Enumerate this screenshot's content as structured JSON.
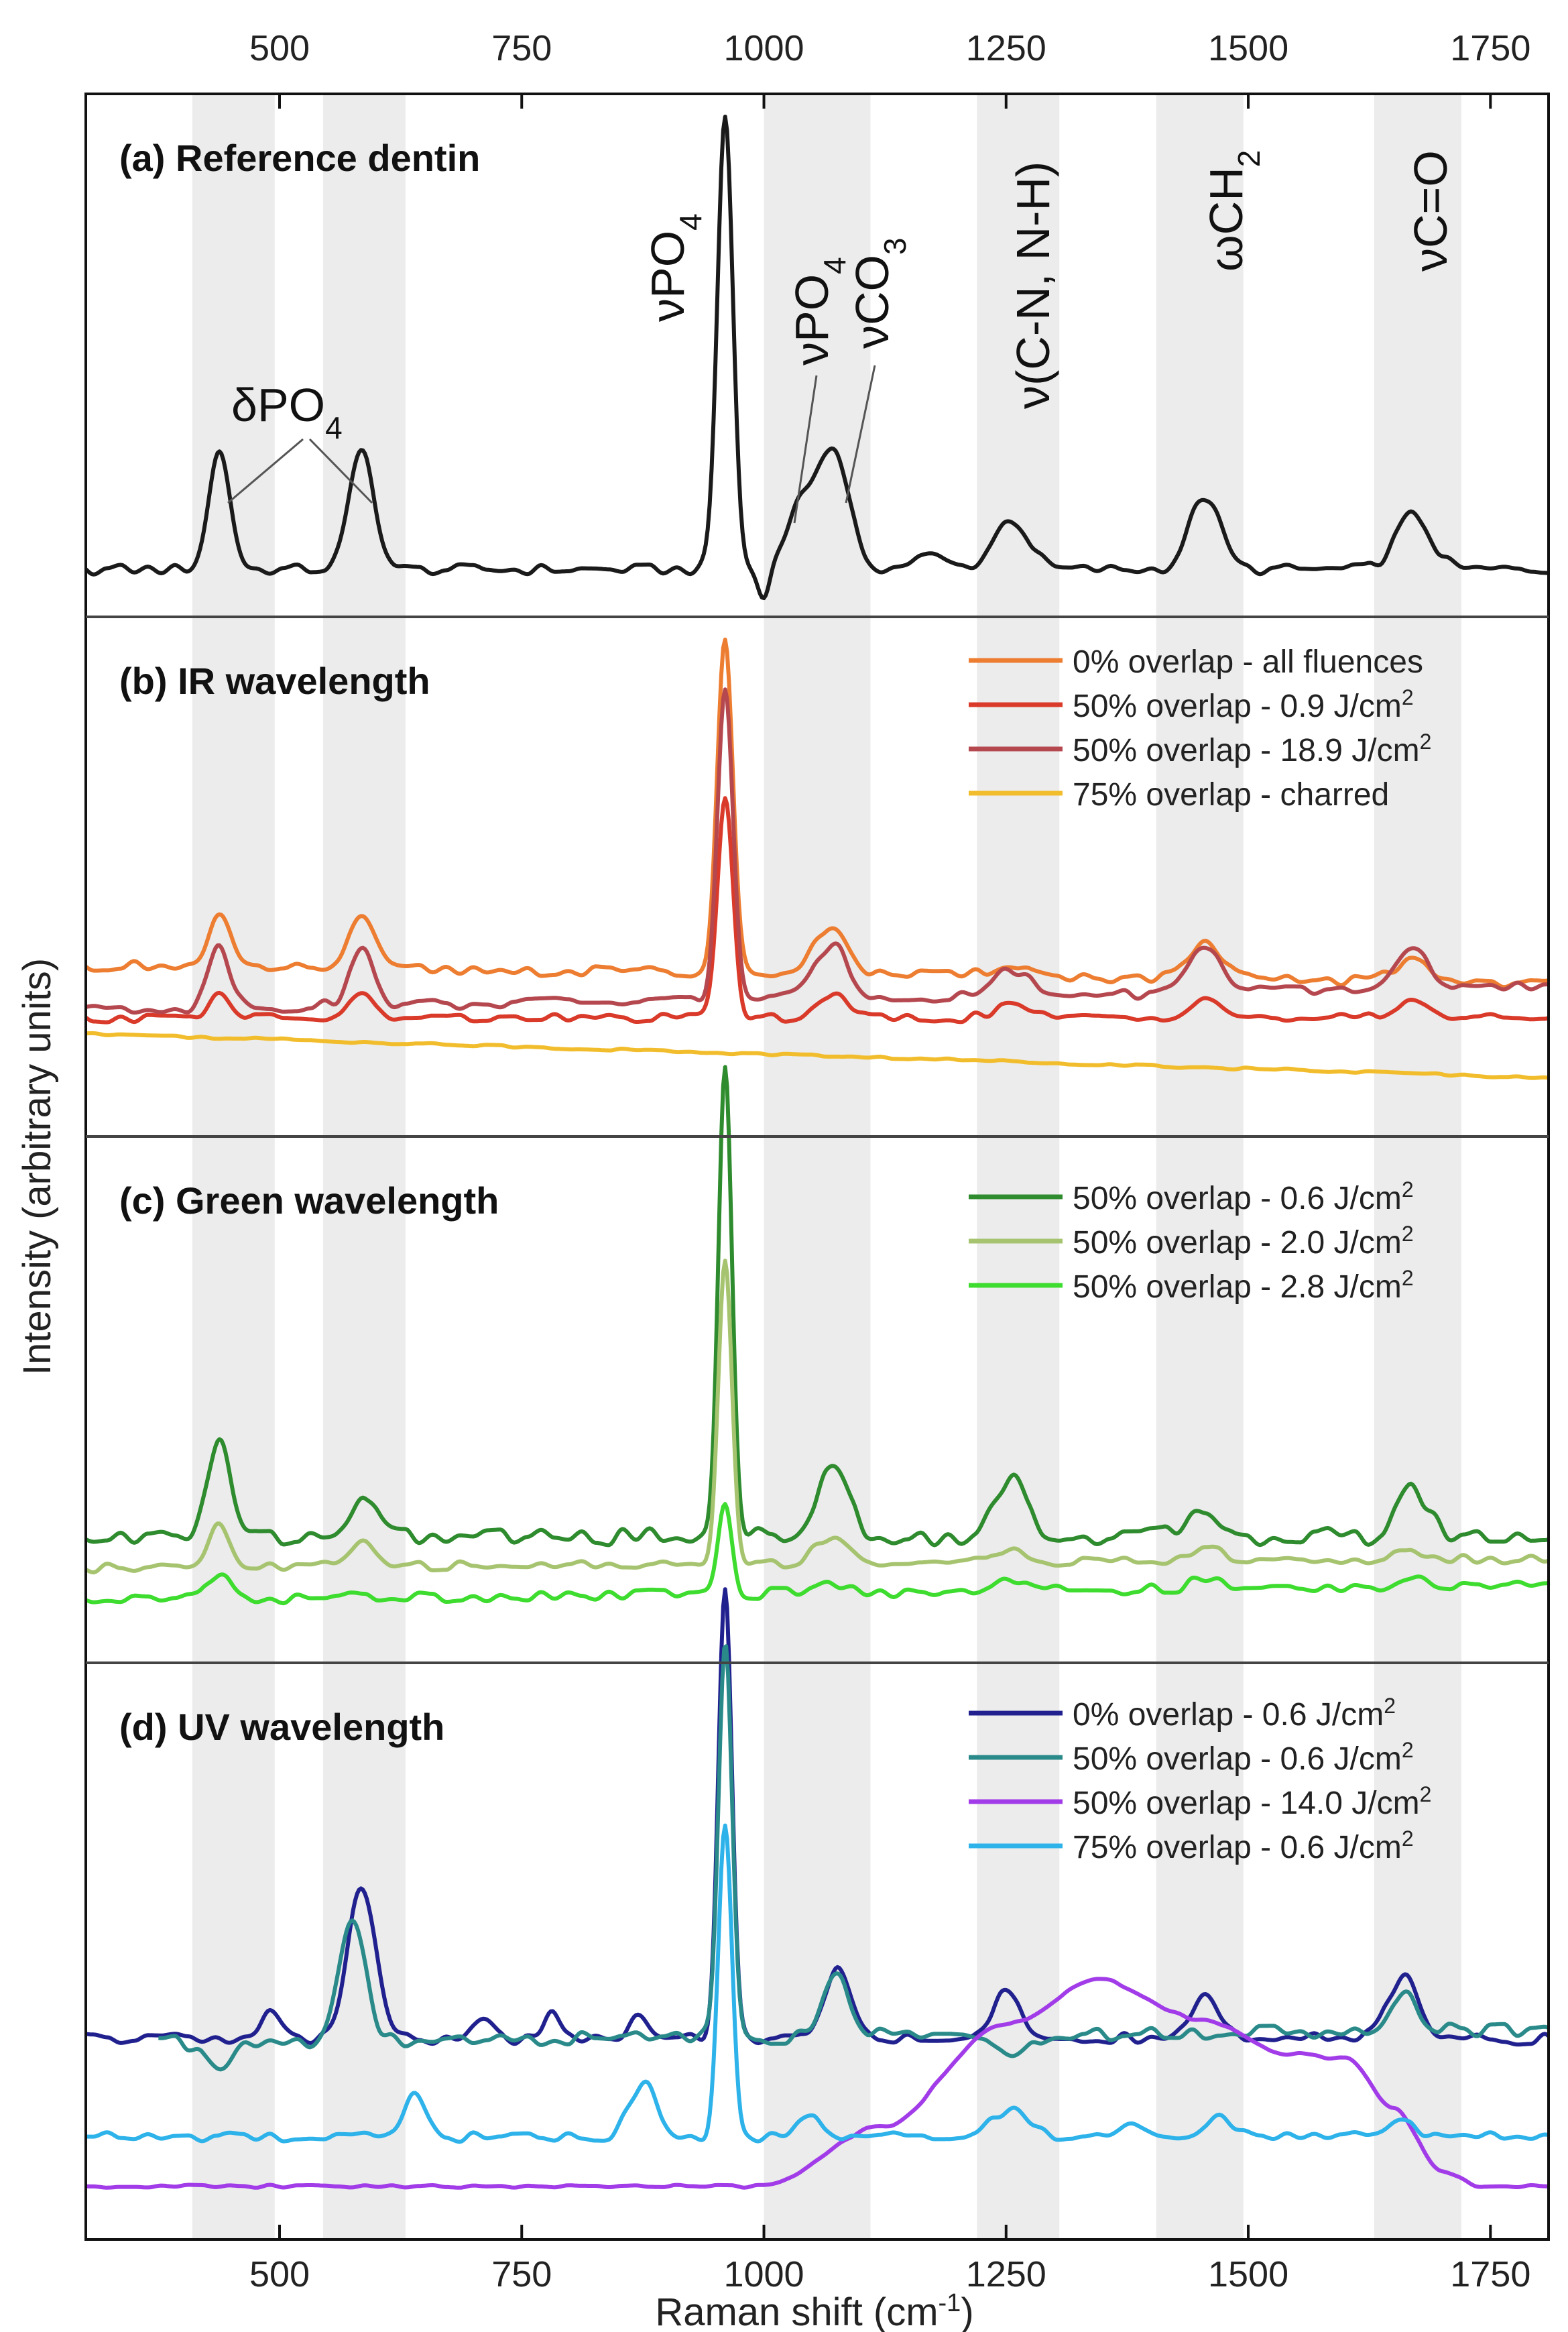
{
  "chart_data": {
    "type": "line",
    "xlabel": "Raman shift (cm",
    "xlabel_sup": "-1",
    "xlabel_close": ")",
    "ylabel": "Intensity (arbitrary units)",
    "xlim": [
      300,
      1810
    ],
    "xticks": [
      500,
      750,
      1000,
      1250,
      1500,
      1750
    ],
    "xtick_labels": [
      "500",
      "750",
      "1000",
      "1250",
      "1500",
      "1750"
    ],
    "shaded_bands": [
      [
        410,
        495
      ],
      [
        545,
        630
      ],
      [
        1000,
        1110
      ],
      [
        1220,
        1305
      ],
      [
        1405,
        1495
      ],
      [
        1630,
        1720
      ]
    ],
    "panels": [
      {
        "title": "(a) Reference dentin",
        "annotations": [
          {
            "label": "δPO",
            "sub": "4",
            "x": 525
          },
          {
            "label": "νPO",
            "sub": "4",
            "x": 960
          },
          {
            "label": "νPO",
            "sub": "4",
            "x": 1035
          },
          {
            "label": "νCO",
            "sub": "3",
            "x": 1080
          },
          {
            "label": "ν(C-N, N-H)",
            "sub": "",
            "x": 1255
          },
          {
            "label": "ωCH",
            "sub": "2",
            "x": 1455
          },
          {
            "label": "νC=O",
            "sub": "",
            "x": 1670
          }
        ],
        "series": [
          {
            "name": "Reference dentin",
            "color": "#1a1a1a",
            "baseline": 0.06,
            "peaks": [
              [
                438,
                0.26,
                11
              ],
              [
                585,
                0.26,
                13
              ],
              [
                960,
                1.0,
                8
              ],
              [
                1035,
                0.12,
                15
              ],
              [
                1070,
                0.26,
                17
              ],
              [
                1170,
                0.03,
                18
              ],
              [
                1255,
                0.11,
                18
              ],
              [
                1455,
                0.16,
                16
              ],
              [
                1670,
                0.12,
                18
              ]
            ],
            "noise": 0.012,
            "dip": [
              1000,
              -0.07,
              6
            ]
          }
        ]
      },
      {
        "title": "(b) IR wavelength",
        "series": [
          {
            "name": "0% overlap - all fluences",
            "sup": "",
            "color": "#ed7d31",
            "baseline": 0.32,
            "slope": -0.04,
            "peaks": [
              [
                438,
                0.11,
                11
              ],
              [
                585,
                0.11,
                13
              ],
              [
                960,
                0.76,
                8
              ],
              [
                1070,
                0.11,
                17
              ],
              [
                1255,
                0.03,
                18
              ],
              [
                1455,
                0.08,
                16
              ],
              [
                1670,
                0.05,
                18
              ]
            ],
            "noise": 0.012
          },
          {
            "name": "50% overlap - 0.9 J/cm",
            "sup": "2",
            "color": "#d93a2a",
            "baseline": 0.2,
            "slope": 0.0,
            "peaks": [
              [
                438,
                0.06,
                11
              ],
              [
                585,
                0.05,
                13
              ],
              [
                960,
                0.5,
                8
              ],
              [
                1070,
                0.05,
                17
              ],
              [
                1255,
                0.03,
                18
              ],
              [
                1455,
                0.05,
                16
              ],
              [
                1670,
                0.04,
                18
              ]
            ],
            "noise": 0.01
          },
          {
            "name": "50% overlap - 18.9 J/cm",
            "sup": "2",
            "color": "#b5484f",
            "baseline": 0.22,
            "slope": 0.05,
            "peaks": [
              [
                438,
                0.14,
                11
              ],
              [
                585,
                0.12,
                13
              ],
              [
                960,
                0.71,
                8
              ],
              [
                1070,
                0.12,
                17
              ],
              [
                1255,
                0.06,
                18
              ],
              [
                1455,
                0.11,
                16
              ],
              [
                1670,
                0.09,
                18
              ]
            ],
            "noise": 0.012
          },
          {
            "name": "75% overlap - charred",
            "sup": "",
            "color": "#f2bd2c",
            "baseline": 0.165,
            "slope": -0.1,
            "peaks": [],
            "noise": 0.003
          }
        ]
      },
      {
        "title": "(c) Green wavelength",
        "series": [
          {
            "name": "50% overlap - 0.6 J/cm",
            "sup": "2",
            "color": "#2e8b2e",
            "baseline": 0.22,
            "slope": 0.0,
            "peaks": [
              [
                438,
                0.22,
                11
              ],
              [
                585,
                0.09,
                13
              ],
              [
                960,
                1.05,
                7
              ],
              [
                1070,
                0.14,
                17
              ],
              [
                1255,
                0.12,
                17
              ],
              [
                1455,
                0.06,
                16
              ],
              [
                1670,
                0.11,
                15
              ]
            ],
            "noise": 0.02
          },
          {
            "name": "50% overlap - 2.0 J/cm",
            "sup": "2",
            "color": "#a6c46f",
            "baseline": 0.15,
            "slope": 0.02,
            "peaks": [
              [
                438,
                0.09,
                11
              ],
              [
                585,
                0.05,
                13
              ],
              [
                960,
                0.67,
                7
              ],
              [
                1070,
                0.06,
                17
              ],
              [
                1255,
                0.03,
                17
              ],
              [
                1455,
                0.03,
                16
              ],
              [
                1670,
                0.02,
                15
              ]
            ],
            "noise": 0.01
          },
          {
            "name": "50% overlap - 2.8 J/cm",
            "sup": "2",
            "color": "#3ddc2f",
            "baseline": 0.08,
            "slope": 0.03,
            "peaks": [
              [
                438,
                0.06,
                11
              ],
              [
                960,
                0.2,
                7
              ],
              [
                1070,
                0.02,
                17
              ],
              [
                1255,
                0.03,
                17
              ],
              [
                1455,
                0.02,
                16
              ],
              [
                1670,
                0.03,
                15
              ]
            ],
            "noise": 0.012
          }
        ]
      },
      {
        "title": "(d) UV wavelength",
        "series": [
          {
            "name": "0% overlap - 0.6 J/cm",
            "sup": "2",
            "color": "#20208f",
            "baseline": 0.34,
            "slope": 0.0,
            "peaks": [
              [
                490,
                0.05,
                12
              ],
              [
                585,
                0.31,
                14
              ],
              [
                710,
                0.04,
                12
              ],
              [
                780,
                0.05,
                8
              ],
              [
                870,
                0.05,
                10
              ],
              [
                960,
                0.92,
                7
              ],
              [
                1075,
                0.14,
                14
              ],
              [
                1250,
                0.09,
                16
              ],
              [
                1455,
                0.09,
                14
              ],
              [
                1660,
                0.13,
                15
              ]
            ],
            "noise": 0.012
          },
          {
            "name": "50% overlap - 0.6 J/cm",
            "sup": "2",
            "color": "#2a8a8a",
            "baseline": 0.33,
            "slope": 0.03,
            "peaks": [
              [
                438,
                -0.06,
                12
              ],
              [
                575,
                0.24,
                14
              ],
              [
                960,
                0.8,
                7
              ],
              [
                1075,
                0.12,
                14
              ],
              [
                1255,
                -0.05,
                16
              ],
              [
                1660,
                0.08,
                15
              ]
            ],
            "noise": 0.015,
            "start": 375
          },
          {
            "name": "50% overlap - 14.0 J/cm",
            "sup": "2",
            "color": "#a13ce8",
            "baseline": 0.04,
            "slope": 0.0,
            "peaks": [],
            "noise": 0.003,
            "hump": [
              [
                1000,
                0.04
              ],
              [
                1120,
                0.16
              ],
              [
                1250,
                0.37
              ],
              [
                1345,
                0.46
              ],
              [
                1450,
                0.38
              ],
              [
                1540,
                0.31
              ],
              [
                1600,
                0.3
              ],
              [
                1650,
                0.2
              ],
              [
                1700,
                0.07
              ],
              [
                1740,
                0.04
              ],
              [
                1810,
                0.04
              ]
            ]
          },
          {
            "name": "75% overlap - 0.6 J/cm",
            "sup": "2",
            "color": "#2db2ea",
            "baseline": 0.14,
            "slope": 0.0,
            "peaks": [
              [
                640,
                0.09,
                10
              ],
              [
                875,
                0.11,
                14
              ],
              [
                960,
                0.63,
                7
              ],
              [
                1050,
                0.04,
                14
              ],
              [
                1255,
                0.06,
                18
              ],
              [
                1380,
                0.03,
                12
              ],
              [
                1470,
                0.04,
                14
              ],
              [
                1660,
                0.03,
                14
              ]
            ],
            "noise": 0.01
          }
        ]
      }
    ]
  }
}
